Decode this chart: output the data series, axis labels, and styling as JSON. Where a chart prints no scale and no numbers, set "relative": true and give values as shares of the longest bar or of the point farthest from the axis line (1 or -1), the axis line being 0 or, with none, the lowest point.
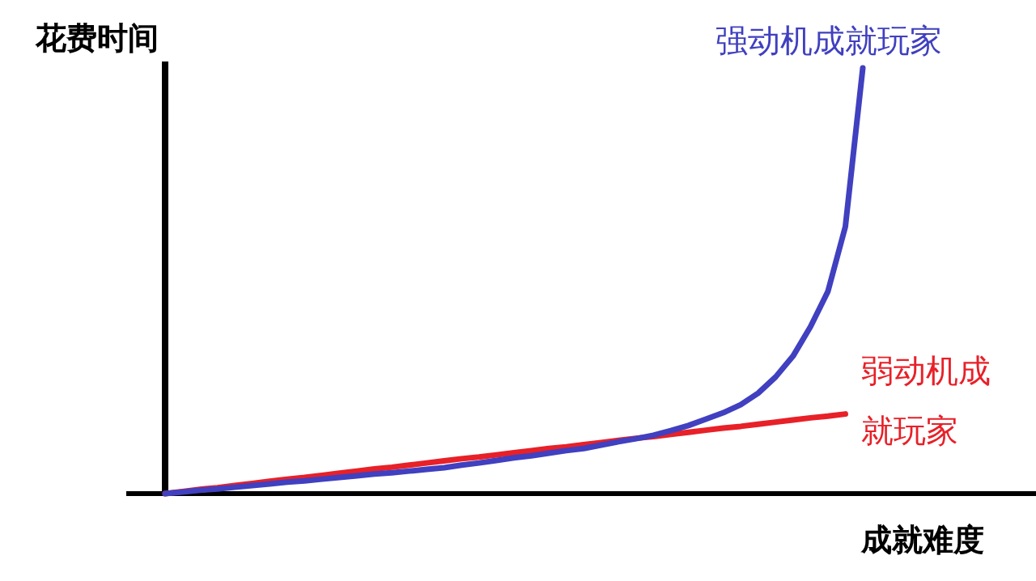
{
  "chart_data": {
    "type": "line",
    "relative": true,
    "xlabel": "成就难度",
    "ylabel": "花费时间",
    "legend": false,
    "categories": [
      null,
      null,
      null,
      null,
      null,
      null,
      null,
      null,
      null,
      null,
      null,
      null,
      null,
      null,
      null,
      null,
      null,
      null,
      null,
      null,
      null,
      null,
      null,
      null,
      null,
      null,
      null,
      null,
      null,
      null,
      null,
      null,
      null,
      null,
      null,
      null,
      null,
      null,
      null,
      null,
      null
    ],
    "series": [
      {
        "name": "强动机成就玩家",
        "color": "#4040c0",
        "values": [
          0,
          0.004,
          0.008,
          0.011,
          0.015,
          0.019,
          0.023,
          0.027,
          0.03,
          0.034,
          0.038,
          0.042,
          0.046,
          0.049,
          0.053,
          0.057,
          0.061,
          0.067,
          0.072,
          0.078,
          0.084,
          0.089,
          0.095,
          0.101,
          0.106,
          0.114,
          0.122,
          0.129,
          0.137,
          0.148,
          0.16,
          0.175,
          0.19,
          0.209,
          0.236,
          0.274,
          0.323,
          0.392,
          0.475,
          0.627,
          1
        ]
      },
      {
        "name": "弱动机成就玩家",
        "color": "#e82028",
        "values": [
          0,
          0.005,
          0.01,
          0.014,
          0.019,
          0.024,
          0.029,
          0.034,
          0.038,
          0.043,
          0.048,
          0.053,
          0.058,
          0.062,
          0.067,
          0.072,
          0.077,
          0.082,
          0.086,
          0.091,
          0.096,
          0.101,
          0.106,
          0.11,
          0.115,
          0.12,
          0.125,
          0.13,
          0.134,
          0.139,
          0.144,
          0.149,
          0.154,
          0.158,
          0.163,
          0.168,
          0.173,
          0.178,
          0.182,
          0.187,
          null
        ]
      }
    ]
  }
}
